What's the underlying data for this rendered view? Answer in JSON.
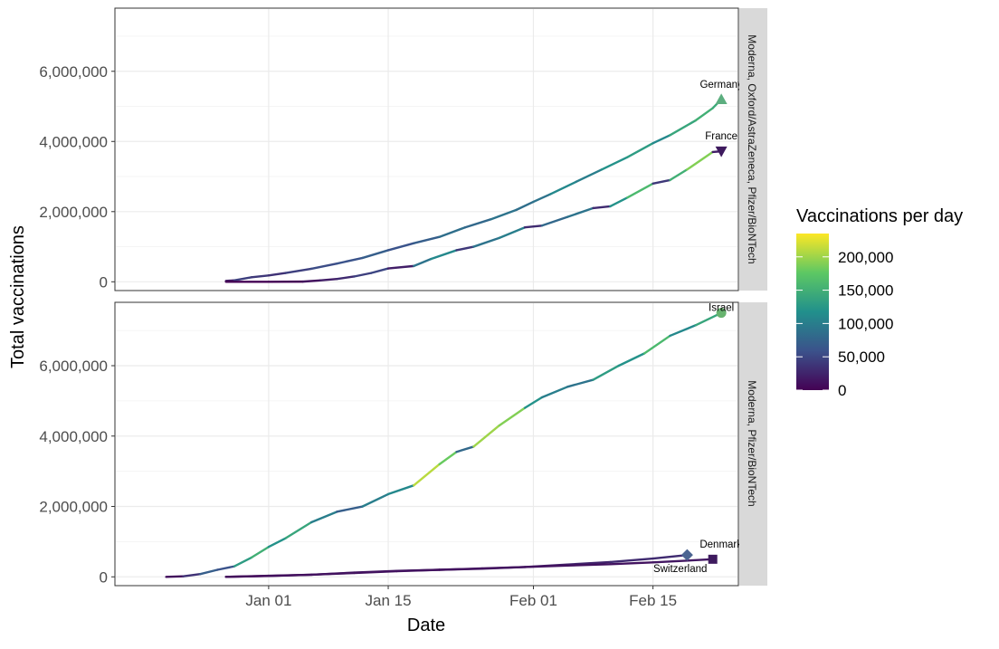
{
  "chart_data": {
    "type": "line",
    "xlabel": "Date",
    "ylabel": "Total vaccinations",
    "x_ticks": [
      "Jan 01",
      "Jan 15",
      "Feb 01",
      "Feb 15"
    ],
    "y_ticks": [
      "0",
      "2,000,000",
      "4,000,000",
      "6,000,000"
    ],
    "ylim": [
      -250000,
      7800000
    ],
    "xlim": [
      "2020-12-14",
      "2021-02-25"
    ],
    "legend": {
      "title": "Vaccinations per day",
      "placement": "right",
      "labels": [
        "0",
        "50,000",
        "100,000",
        "150,000",
        "200,000"
      ],
      "range": [
        0,
        235000
      ],
      "colors": [
        "#440154",
        "#3b528b",
        "#21908c",
        "#5dc863",
        "#fde725"
      ]
    },
    "panels": [
      {
        "strip_label": "Moderna, Oxford/AstraZeneca, Pfizer/BioNTech",
        "series": [
          {
            "name": "Germany",
            "marker": "triangle-up",
            "marker_color": "#5cae7f",
            "points": [
              [
                "2020-12-27",
                24000,
                10000
              ],
              [
                "2020-12-28",
                43000,
                20000
              ],
              [
                "2020-12-30",
                130000,
                45000
              ],
              [
                "2021-01-01",
                180000,
                40000
              ],
              [
                "2021-01-03",
                250000,
                35000
              ],
              [
                "2021-01-06",
                370000,
                45000
              ],
              [
                "2021-01-09",
                520000,
                55000
              ],
              [
                "2021-01-12",
                680000,
                60000
              ],
              [
                "2021-01-15",
                900000,
                70000
              ],
              [
                "2021-01-18",
                1100000,
                60000
              ],
              [
                "2021-01-21",
                1280000,
                70000
              ],
              [
                "2021-01-24",
                1550000,
                85000
              ],
              [
                "2021-01-27",
                1780000,
                80000
              ],
              [
                "2021-01-30",
                2050000,
                90000
              ],
              [
                "2021-02-01",
                2280000,
                85000
              ],
              [
                "2021-02-03",
                2500000,
                90000
              ],
              [
                "2021-02-06",
                2850000,
                110000
              ],
              [
                "2021-02-09",
                3200000,
                100000
              ],
              [
                "2021-02-12",
                3550000,
                120000
              ],
              [
                "2021-02-15",
                3950000,
                130000
              ],
              [
                "2021-02-17",
                4180000,
                110000
              ],
              [
                "2021-02-20",
                4600000,
                140000
              ],
              [
                "2021-02-22",
                4950000,
                150000
              ],
              [
                "2021-02-23",
                5200000,
                145000
              ]
            ]
          },
          {
            "name": "France",
            "marker": "triangle-down",
            "marker_color": "#3e1a5e",
            "points": [
              [
                "2020-12-27",
                0,
                0
              ],
              [
                "2021-01-01",
                0,
                0
              ],
              [
                "2021-01-05",
                5000,
                1000
              ],
              [
                "2021-01-07",
                40000,
                10000
              ],
              [
                "2021-01-09",
                80000,
                20000
              ],
              [
                "2021-01-11",
                150000,
                30000
              ],
              [
                "2021-01-13",
                250000,
                45000
              ],
              [
                "2021-01-15",
                380000,
                50000
              ],
              [
                "2021-01-18",
                450000,
                20000
              ],
              [
                "2021-01-20",
                650000,
                90000
              ],
              [
                "2021-01-23",
                900000,
                110000
              ],
              [
                "2021-01-25",
                1000000,
                40000
              ],
              [
                "2021-01-28",
                1250000,
                90000
              ],
              [
                "2021-01-31",
                1550000,
                100000
              ],
              [
                "2021-02-02",
                1600000,
                30000
              ],
              [
                "2021-02-05",
                1850000,
                80000
              ],
              [
                "2021-02-08",
                2100000,
                90000
              ],
              [
                "2021-02-10",
                2150000,
                30000
              ],
              [
                "2021-02-12",
                2400000,
                120000
              ],
              [
                "2021-02-15",
                2800000,
                160000
              ],
              [
                "2021-02-17",
                2900000,
                40000
              ],
              [
                "2021-02-19",
                3200000,
                150000
              ],
              [
                "2021-02-22",
                3700000,
                190000
              ],
              [
                "2021-02-23",
                3720000,
                20000
              ]
            ]
          }
        ]
      },
      {
        "strip_label": "Moderna, Pfizer/BioNTech",
        "series": [
          {
            "name": "Israel",
            "marker": "circle",
            "marker_color": "#67b36e",
            "points": [
              [
                "2020-12-20",
                0,
                5000
              ],
              [
                "2020-12-22",
                15000,
                10000
              ],
              [
                "2020-12-24",
                80000,
                35000
              ],
              [
                "2020-12-26",
                200000,
                70000
              ],
              [
                "2020-12-28",
                300000,
                60000
              ],
              [
                "2020-12-30",
                550000,
                130000
              ],
              [
                "2021-01-01",
                850000,
                150000
              ],
              [
                "2021-01-03",
                1100000,
                120000
              ],
              [
                "2021-01-06",
                1550000,
                140000
              ],
              [
                "2021-01-09",
                1850000,
                100000
              ],
              [
                "2021-01-12",
                2000000,
                70000
              ],
              [
                "2021-01-15",
                2350000,
                100000
              ],
              [
                "2021-01-18",
                2600000,
                110000
              ],
              [
                "2021-01-21",
                3200000,
                210000
              ],
              [
                "2021-01-23",
                3550000,
                180000
              ],
              [
                "2021-01-25",
                3700000,
                80000
              ],
              [
                "2021-01-28",
                4300000,
                200000
              ],
              [
                "2021-01-31",
                4800000,
                190000
              ],
              [
                "2021-02-02",
                5100000,
                120000
              ],
              [
                "2021-02-05",
                5400000,
                100000
              ],
              [
                "2021-02-08",
                5600000,
                90000
              ],
              [
                "2021-02-11",
                6000000,
                130000
              ],
              [
                "2021-02-14",
                6350000,
                120000
              ],
              [
                "2021-02-17",
                6850000,
                160000
              ],
              [
                "2021-02-20",
                7150000,
                110000
              ],
              [
                "2021-02-23",
                7500000,
                140000
              ]
            ]
          },
          {
            "name": "Denmark",
            "marker": "diamond",
            "marker_color": "#4b6491",
            "points": [
              [
                "2020-12-27",
                0,
                5000
              ],
              [
                "2021-01-01",
                30000,
                10000
              ],
              [
                "2021-01-06",
                60000,
                10000
              ],
              [
                "2021-01-11",
                120000,
                15000
              ],
              [
                "2021-01-16",
                170000,
                15000
              ],
              [
                "2021-01-21",
                200000,
                15000
              ],
              [
                "2021-01-26",
                230000,
                15000
              ],
              [
                "2021-01-31",
                280000,
                20000
              ],
              [
                "2021-02-05",
                350000,
                20000
              ],
              [
                "2021-02-10",
                420000,
                25000
              ],
              [
                "2021-02-15",
                520000,
                30000
              ],
              [
                "2021-02-19",
                620000,
                30000
              ]
            ]
          },
          {
            "name": "Switzerland",
            "marker": "square",
            "marker_color": "#3e1a5e",
            "points": [
              [
                "2020-12-27",
                0,
                3000
              ],
              [
                "2021-01-01",
                25000,
                8000
              ],
              [
                "2021-01-06",
                60000,
                10000
              ],
              [
                "2021-01-11",
                110000,
                12000
              ],
              [
                "2021-01-16",
                160000,
                12000
              ],
              [
                "2021-01-21",
                200000,
                12000
              ],
              [
                "2021-01-26",
                240000,
                12000
              ],
              [
                "2021-01-31",
                280000,
                12000
              ],
              [
                "2021-02-05",
                320000,
                12000
              ],
              [
                "2021-02-10",
                360000,
                12000
              ],
              [
                "2021-02-15",
                410000,
                12000
              ],
              [
                "2021-02-22",
                500000,
                15000
              ]
            ]
          }
        ]
      }
    ]
  }
}
